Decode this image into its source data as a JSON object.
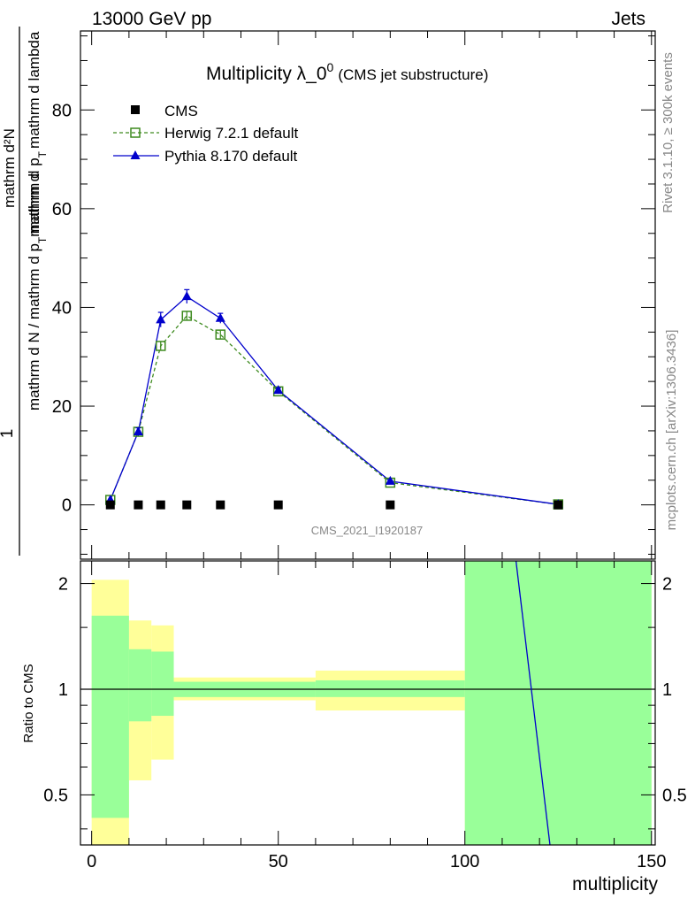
{
  "header": {
    "energy_label": "13000 GeV pp",
    "category_label": "Jets"
  },
  "side_labels": {
    "rivet": "Rivet 3.1.10, ≥ 300k events",
    "mcplots": "mcplots.cern.ch [arXiv:1306.3436]"
  },
  "chart_data": [
    {
      "type": "line",
      "title_main": "Multiplicity λ_0",
      "title_sup": "0",
      "title_sub": "(CMS jet substructure)",
      "analysis_id": "CMS_2021_I1920187",
      "ylabel_num": "mathrm d²N",
      "ylabel_num_prefix": "1",
      "ylabel_den": "mathrm d N / mathrm d p",
      "ylabel_den_mid": "mathrm d p",
      "ylabel_den_tail": "mathrm d lambda",
      "ylabel_t": "T",
      "ylabel_connect": "mathrm d",
      "xlim": [
        -3,
        151
      ],
      "ylim": [
        -11,
        96
      ],
      "yticks": [
        0,
        20,
        40,
        60,
        80
      ],
      "ytick_labels": [
        "0",
        "20",
        "40",
        "60",
        "80"
      ],
      "legend": [
        {
          "name": "CMS",
          "marker": "square",
          "color": "#000000"
        },
        {
          "name": "Herwig 7.2.1 default",
          "marker": "open-square",
          "color": "#3d8a1e"
        },
        {
          "name": "Pythia 8.170 default",
          "marker": "triangle",
          "color": "#0000cc"
        }
      ],
      "series": [
        {
          "name": "CMS",
          "x": [
            5,
            12.5,
            18.5,
            25.5,
            34.5,
            50,
            80,
            125
          ],
          "values": [
            0,
            0,
            0,
            0,
            0,
            0,
            0,
            0
          ],
          "errors": [
            0,
            0,
            0,
            0,
            0,
            0,
            0,
            0
          ]
        },
        {
          "name": "Herwig 7.2.1 default",
          "x": [
            5,
            12.5,
            18.5,
            25.5,
            34.5,
            50,
            80,
            125
          ],
          "values": [
            1,
            14.8,
            32.2,
            38.3,
            34.5,
            23.0,
            4.5,
            0.1
          ],
          "errors": [
            0,
            0.6,
            0.8,
            0.8,
            0.8,
            0.5,
            0.2,
            0
          ]
        },
        {
          "name": "Pythia 8.170 default",
          "x": [
            5,
            12.5,
            18.5,
            25.5,
            34.5,
            50,
            80,
            125
          ],
          "values": [
            1,
            14.8,
            37.5,
            42.2,
            37.8,
            23.2,
            4.8,
            0.1
          ],
          "errors": [
            0,
            0.8,
            1.5,
            1.4,
            1.0,
            0.5,
            0.2,
            0
          ]
        }
      ]
    },
    {
      "type": "area",
      "ylabel": "Ratio to CMS",
      "xlabel": "multiplicity",
      "xlim": [
        -3,
        151
      ],
      "ylim": [
        0.36,
        2.32
      ],
      "ylog": true,
      "yticks": [
        0.5,
        1,
        2
      ],
      "ytick_labels": [
        "0.5",
        "1",
        "2"
      ],
      "xticks": [
        0,
        50,
        100,
        150
      ],
      "xtick_labels": [
        "0",
        "50",
        "100",
        "150"
      ],
      "bands": [
        {
          "x": [
            0,
            10
          ],
          "yellow": [
            0.36,
            2.05
          ],
          "green": [
            0.43,
            1.62
          ]
        },
        {
          "x": [
            10,
            16
          ],
          "yellow": [
            0.55,
            1.57
          ],
          "green": [
            0.81,
            1.3
          ]
        },
        {
          "x": [
            16,
            22
          ],
          "yellow": [
            0.63,
            1.52
          ],
          "green": [
            0.84,
            1.28
          ]
        },
        {
          "x": [
            22,
            60
          ],
          "yellow": [
            0.93,
            1.08
          ],
          "green": [
            0.95,
            1.05
          ]
        },
        {
          "x": [
            60,
            100
          ],
          "yellow": [
            0.87,
            1.13
          ],
          "green": [
            0.95,
            1.06
          ]
        },
        {
          "x": [
            100,
            150
          ],
          "yellow": [
            0.36,
            2.32
          ],
          "green": [
            0.36,
            2.32
          ]
        }
      ],
      "reference_line": 1,
      "pythia_ratio_line": {
        "x": [
          113.7,
          122.8
        ],
        "y": [
          2.32,
          0.36
        ]
      }
    }
  ]
}
